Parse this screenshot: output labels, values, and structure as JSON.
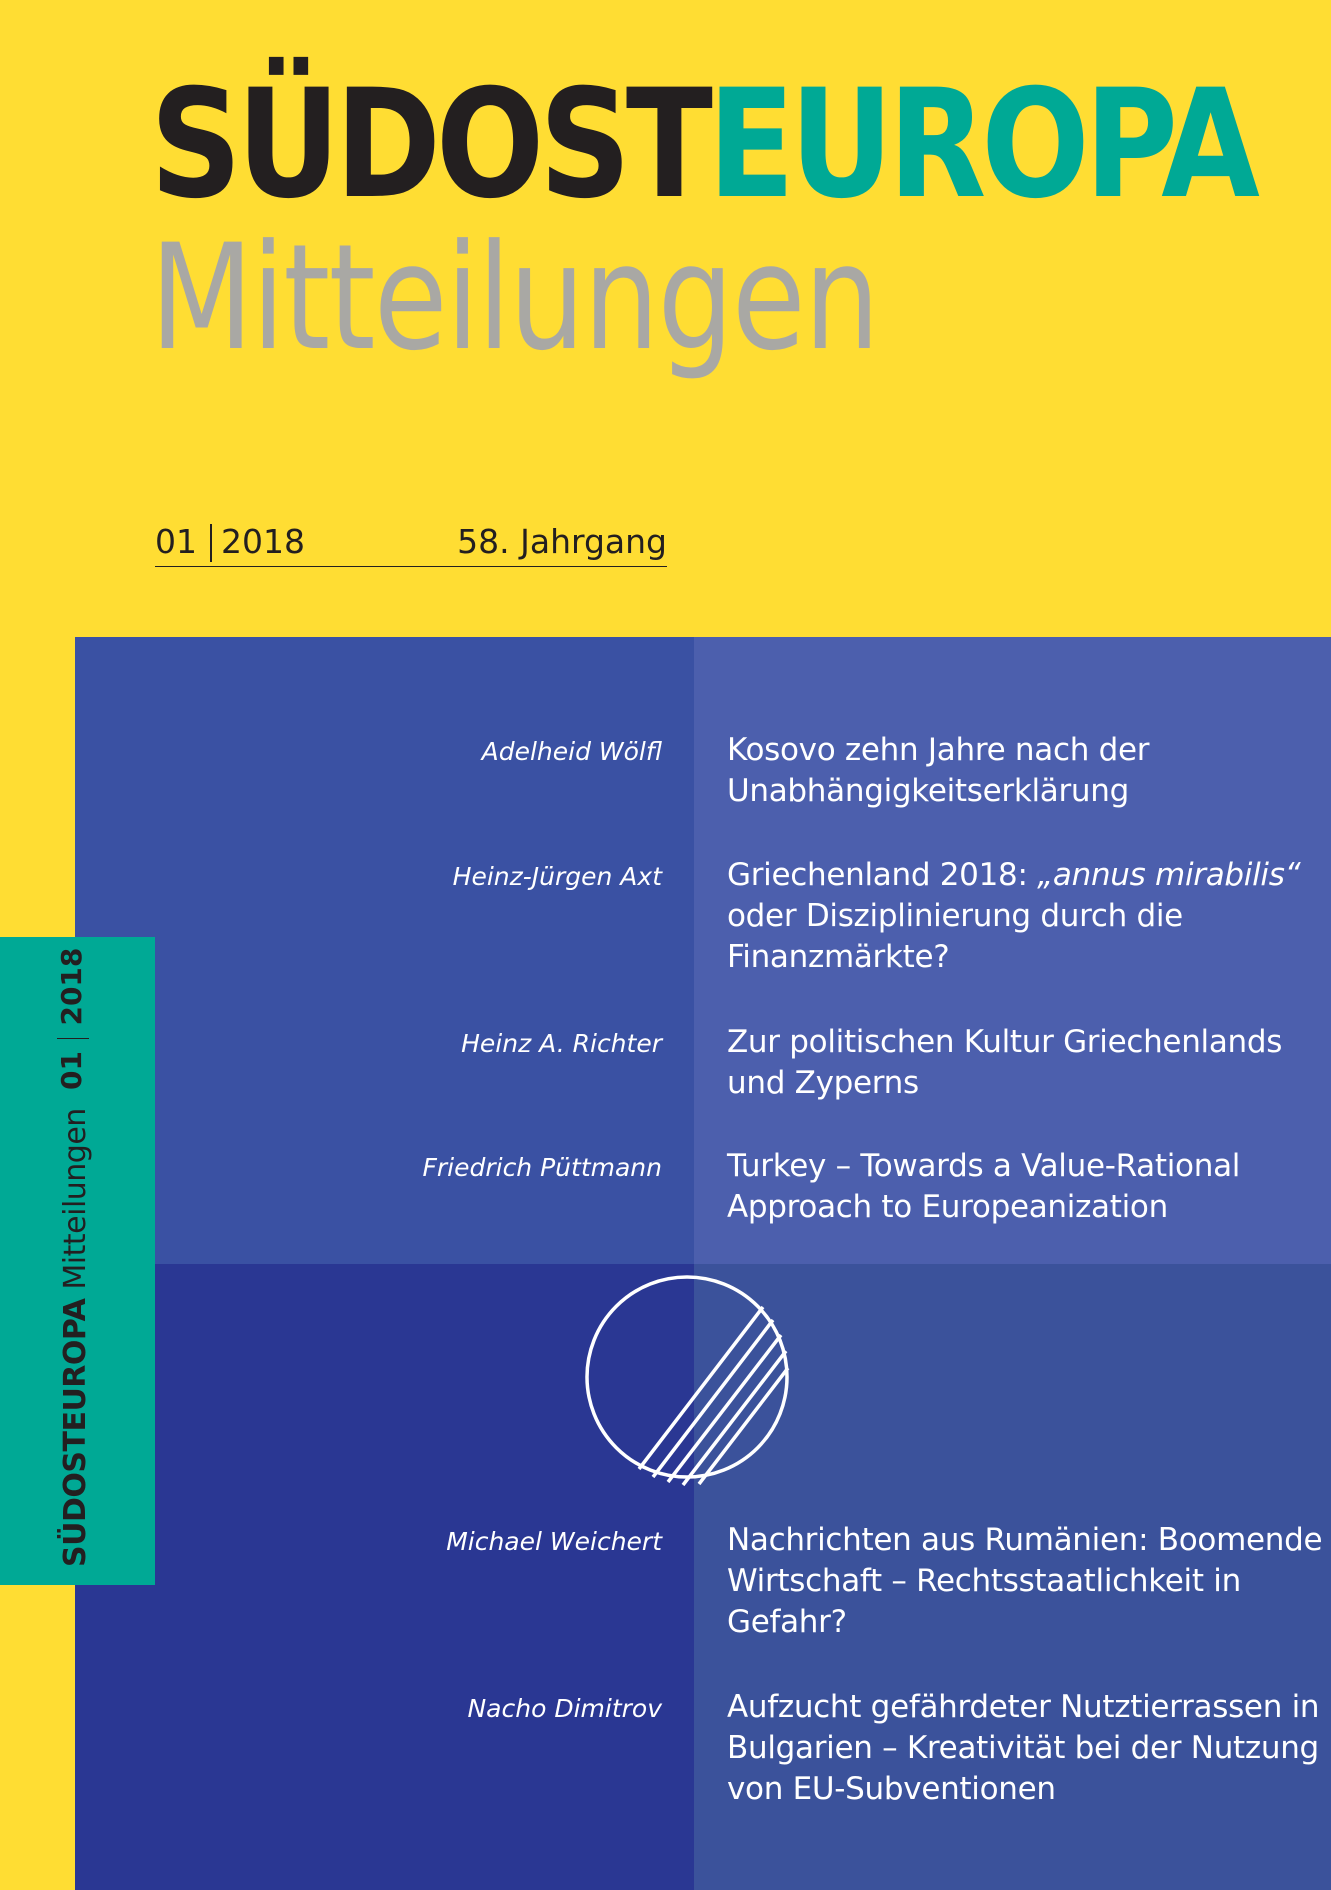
{
  "masthead": {
    "brand_dark": "SÜDOST",
    "brand_accent": "EUROPA",
    "subtitle": "Mitteilungen"
  },
  "issue": {
    "number": "01",
    "year": "2018",
    "volume": "58. Jahrgang"
  },
  "spine": {
    "brand_dark": "SÜDOST",
    "brand_accent": "EUROPA",
    "subtitle": " Mitteilungen",
    "number": "01",
    "year": "2018"
  },
  "articles": [
    {
      "author": "Adelheid Wölfl",
      "line1": "Kosovo zehn Jahre nach der",
      "line2": "Unabhängigkeitserklärung"
    },
    {
      "author": "Heinz-Jürgen Axt",
      "line1_prefix": "Griechenland 2018: ",
      "line1_italic": "„annus mirabilis“",
      "line2": "oder Disziplinierung durch die",
      "line3": "Finanzmärkte?"
    },
    {
      "author": "Heinz A. Richter",
      "line1": "Zur politischen Kultur Griechenlands",
      "line2": "und Zyperns"
    },
    {
      "author": "Friedrich Püttmann",
      "line1": "Turkey – Towards a Value-Rational",
      "line2": "Approach to Europeanization"
    },
    {
      "author": "Michael Weichert",
      "line1": "Nachrichten aus Rumänien: Boomende",
      "line2": "Wirtschaft – Rechtsstaatlichkeit in",
      "line3": "Gefahr?"
    },
    {
      "author": "Nacho Dimitrov",
      "line1": "Aufzucht gefährdeter Nutztierrassen in",
      "line2": "Bulgarien – Kreativität bei der Nutzung",
      "line3": "von EU-Subventionen"
    }
  ],
  "colors": {
    "background": "#ffdd33",
    "accent": "#00a995",
    "dark": "#231f20",
    "subtitle_grey": "#a9a8a4",
    "block_top_left": "#3a51a3",
    "block_top_right": "#4c5fad",
    "block_bottom_left": "#2a3793",
    "block_bottom_right": "#3b529b"
  },
  "logo_icon": "circle-with-diagonal-lines-icon"
}
